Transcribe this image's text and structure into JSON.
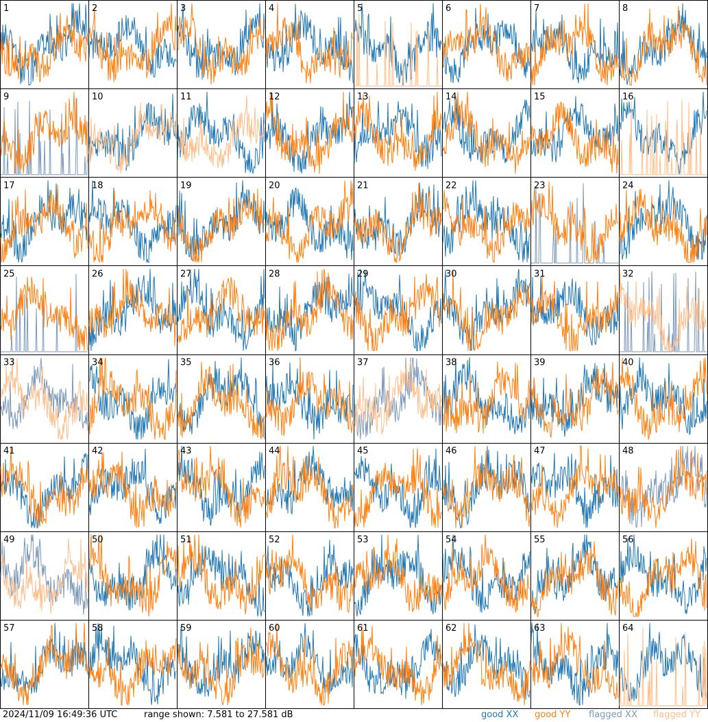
{
  "footer": {
    "timestamp": "2024/11/09 16:49:36 UTC",
    "range_text": "range shown: 7.581 to 27.581 dB"
  },
  "legend": [
    {
      "label": "good XX",
      "color": "#1f77b4"
    },
    {
      "label": "good YY",
      "color": "#ff7f0e"
    },
    {
      "label": "flagged XX",
      "color": "#7b98b9"
    },
    {
      "label": "flagged YY",
      "color": "#ffbd87"
    }
  ],
  "chart_data": {
    "type": "line",
    "grid": "8x8 small multiples",
    "y_unit": "dB",
    "ylim": [
      7.581,
      27.581
    ],
    "colors": {
      "good_xx": "#1f77b4",
      "good_yy": "#ff7f0e",
      "flagged_xx": "#7b98b9",
      "flagged_yy": "#ffbd87"
    },
    "panels": [
      {
        "id": "1",
        "xx": "good",
        "yy": "good"
      },
      {
        "id": "2",
        "xx": "good",
        "yy": "good"
      },
      {
        "id": "3",
        "xx": "good",
        "yy": "good"
      },
      {
        "id": "4",
        "xx": "good",
        "yy": "good"
      },
      {
        "id": "5",
        "xx": "good",
        "yy": "flagged"
      },
      {
        "id": "6",
        "xx": "good",
        "yy": "good"
      },
      {
        "id": "7",
        "xx": "good",
        "yy": "good"
      },
      {
        "id": "8",
        "xx": "good",
        "yy": "good"
      },
      {
        "id": "9",
        "xx": "flagged",
        "yy": "good"
      },
      {
        "id": "10",
        "xx": "good",
        "yy": "flagged"
      },
      {
        "id": "11",
        "xx": "good",
        "yy": "flagged"
      },
      {
        "id": "12",
        "xx": "good",
        "yy": "good"
      },
      {
        "id": "13",
        "xx": "good",
        "yy": "good"
      },
      {
        "id": "14",
        "xx": "good",
        "yy": "good"
      },
      {
        "id": "15",
        "xx": "good",
        "yy": "good"
      },
      {
        "id": "16",
        "xx": "good",
        "yy": "flagged"
      },
      {
        "id": "17",
        "xx": "good",
        "yy": "good"
      },
      {
        "id": "18",
        "xx": "good",
        "yy": "good"
      },
      {
        "id": "19",
        "xx": "good",
        "yy": "good"
      },
      {
        "id": "20",
        "xx": "good",
        "yy": "good"
      },
      {
        "id": "21",
        "xx": "good",
        "yy": "good"
      },
      {
        "id": "22",
        "xx": "good",
        "yy": "good"
      },
      {
        "id": "23",
        "xx": "flagged",
        "yy": "good"
      },
      {
        "id": "24",
        "xx": "good",
        "yy": "good"
      },
      {
        "id": "25",
        "xx": "flagged",
        "yy": "good"
      },
      {
        "id": "26",
        "xx": "good",
        "yy": "good"
      },
      {
        "id": "27",
        "xx": "good",
        "yy": "good"
      },
      {
        "id": "28",
        "xx": "good",
        "yy": "good"
      },
      {
        "id": "29",
        "xx": "good",
        "yy": "good"
      },
      {
        "id": "30",
        "xx": "good",
        "yy": "good"
      },
      {
        "id": "31",
        "xx": "good",
        "yy": "good"
      },
      {
        "id": "32",
        "xx": "flagged",
        "yy": "flagged"
      },
      {
        "id": "33",
        "xx": "flagged",
        "yy": "flagged"
      },
      {
        "id": "34",
        "xx": "good",
        "yy": "good"
      },
      {
        "id": "35",
        "xx": "good",
        "yy": "good"
      },
      {
        "id": "36",
        "xx": "good",
        "yy": "good"
      },
      {
        "id": "37",
        "xx": "flagged",
        "yy": "flagged"
      },
      {
        "id": "38",
        "xx": "good",
        "yy": "good"
      },
      {
        "id": "39",
        "xx": "good",
        "yy": "good"
      },
      {
        "id": "40",
        "xx": "good",
        "yy": "good"
      },
      {
        "id": "41",
        "xx": "good",
        "yy": "good"
      },
      {
        "id": "42",
        "xx": "good",
        "yy": "good"
      },
      {
        "id": "43",
        "xx": "good",
        "yy": "good"
      },
      {
        "id": "44",
        "xx": "good",
        "yy": "good"
      },
      {
        "id": "45",
        "xx": "good",
        "yy": "good"
      },
      {
        "id": "46",
        "xx": "good",
        "yy": "good"
      },
      {
        "id": "47",
        "xx": "good",
        "yy": "good"
      },
      {
        "id": "48",
        "xx": "flagged",
        "yy": "good"
      },
      {
        "id": "49",
        "xx": "flagged",
        "yy": "flagged"
      },
      {
        "id": "50",
        "xx": "good",
        "yy": "good"
      },
      {
        "id": "51",
        "xx": "good",
        "yy": "good"
      },
      {
        "id": "52",
        "xx": "good",
        "yy": "good"
      },
      {
        "id": "53",
        "xx": "good",
        "yy": "good"
      },
      {
        "id": "54",
        "xx": "good",
        "yy": "good"
      },
      {
        "id": "55",
        "xx": "good",
        "yy": "good"
      },
      {
        "id": "56",
        "xx": "good",
        "yy": "good"
      },
      {
        "id": "57",
        "xx": "good",
        "yy": "good"
      },
      {
        "id": "58",
        "xx": "good",
        "yy": "good"
      },
      {
        "id": "59",
        "xx": "good",
        "yy": "good"
      },
      {
        "id": "60",
        "xx": "good",
        "yy": "good"
      },
      {
        "id": "61",
        "xx": "good",
        "yy": "good"
      },
      {
        "id": "62",
        "xx": "good",
        "yy": "good"
      },
      {
        "id": "63",
        "xx": "good",
        "yy": "good"
      },
      {
        "id": "64",
        "xx": "good",
        "yy": "flagged"
      }
    ]
  }
}
